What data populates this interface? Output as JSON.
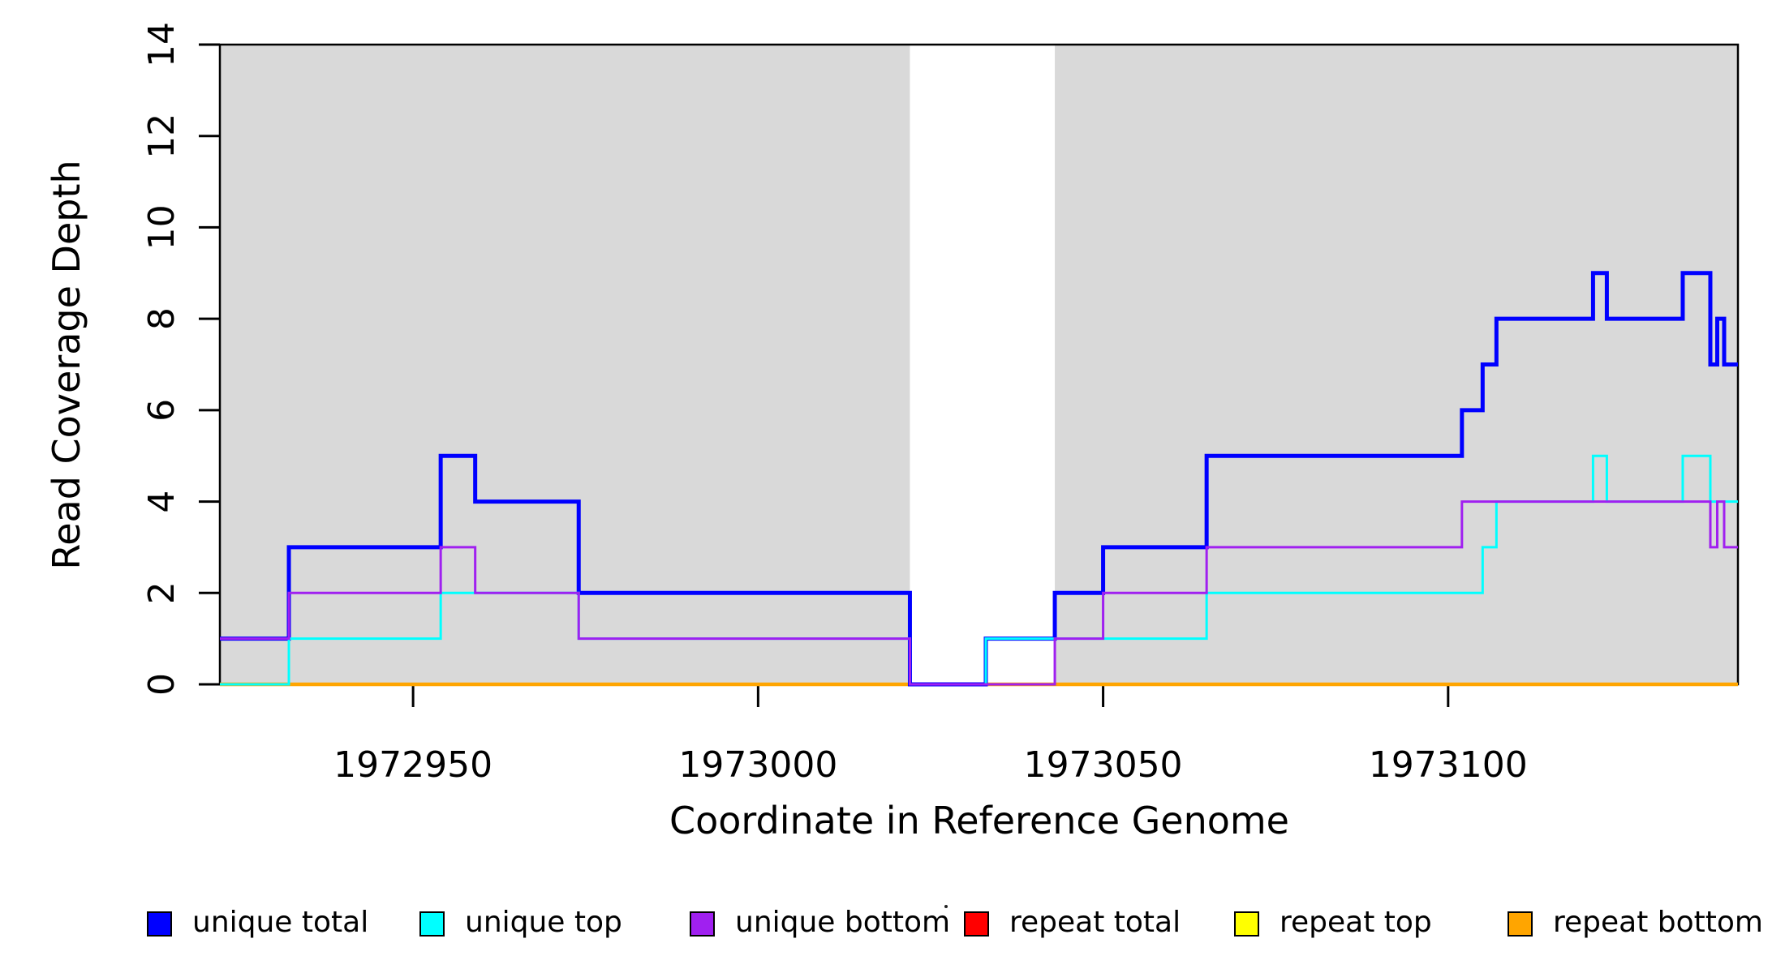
{
  "chart_data": {
    "type": "line",
    "subtype": "step-coverage",
    "title": "",
    "xlabel": "Coordinate in Reference Genome",
    "ylabel": "Read Coverage Depth",
    "x_range": [
      1972922,
      1973142
    ],
    "y_range": [
      0,
      14
    ],
    "x_ticks": [
      1972950,
      1973000,
      1973050,
      1973100
    ],
    "y_ticks": [
      0,
      2,
      4,
      6,
      8,
      10,
      12,
      14
    ],
    "grid": false,
    "background_color": "#ffffff",
    "shaded_regions": [
      {
        "name": "aligned-block-1",
        "x0": 1972922,
        "x1": 1973022,
        "color": "#d9d9d9"
      },
      {
        "name": "aligned-block-2",
        "x0": 1973043,
        "x1": 1973142,
        "color": "#d9d9d9"
      }
    ],
    "series": [
      {
        "name": "unique total",
        "color": "#0000ff",
        "line_width": 5,
        "z": 4,
        "steps": [
          [
            1972922,
            1
          ],
          [
            1972932,
            3
          ],
          [
            1972954,
            5
          ],
          [
            1972959,
            4
          ],
          [
            1972974,
            2
          ],
          [
            1973022,
            0
          ],
          [
            1973033,
            1
          ],
          [
            1973043,
            2
          ],
          [
            1973050,
            3
          ],
          [
            1973065,
            5
          ],
          [
            1973102,
            6
          ],
          [
            1973105,
            7
          ],
          [
            1973107,
            8
          ],
          [
            1973121,
            9
          ],
          [
            1973123,
            8
          ],
          [
            1973134,
            9
          ],
          [
            1973138,
            7
          ],
          [
            1973139,
            8
          ],
          [
            1973140,
            7
          ]
        ]
      },
      {
        "name": "unique top",
        "color": "#00ffff",
        "line_width": 3,
        "z": 5,
        "steps": [
          [
            1972922,
            0
          ],
          [
            1972932,
            1
          ],
          [
            1972954,
            2
          ],
          [
            1972974,
            1
          ],
          [
            1973022,
            0
          ],
          [
            1973033,
            1
          ],
          [
            1973065,
            2
          ],
          [
            1973105,
            3
          ],
          [
            1973107,
            4
          ],
          [
            1973121,
            5
          ],
          [
            1973123,
            4
          ],
          [
            1973134,
            5
          ],
          [
            1973138,
            4
          ]
        ]
      },
      {
        "name": "unique bottom",
        "color": "#a020f0",
        "line_width": 3,
        "z": 6,
        "steps": [
          [
            1972922,
            1
          ],
          [
            1972932,
            2
          ],
          [
            1972954,
            3
          ],
          [
            1972959,
            2
          ],
          [
            1972974,
            1
          ],
          [
            1973022,
            0
          ],
          [
            1973043,
            1
          ],
          [
            1973050,
            2
          ],
          [
            1973065,
            3
          ],
          [
            1973102,
            4
          ],
          [
            1973138,
            3
          ],
          [
            1973139,
            4
          ],
          [
            1973140,
            3
          ]
        ]
      },
      {
        "name": "repeat total",
        "color": "#ff0000",
        "line_width": 3,
        "z": 1,
        "steps": [
          [
            1972922,
            0
          ]
        ]
      },
      {
        "name": "repeat top",
        "color": "#ffff00",
        "line_width": 3,
        "z": 2,
        "steps": [
          [
            1972922,
            0
          ]
        ]
      },
      {
        "name": "repeat bottom",
        "color": "#ffa500",
        "line_width": 4.5,
        "z": 3,
        "steps": [
          [
            1972922,
            0
          ]
        ]
      }
    ],
    "legend": {
      "position": "bottom",
      "items": [
        {
          "label": "unique total",
          "color": "#0000ff"
        },
        {
          "label": "unique top",
          "color": "#00ffff"
        },
        {
          "label": "unique bottom",
          "color": "#a020f0"
        },
        {
          "label": "repeat total",
          "color": "#ff0000"
        },
        {
          "label": "repeat top",
          "color": "#ffff00"
        },
        {
          "label": "repeat bottom",
          "color": "#ffa500"
        }
      ]
    },
    "axis_color": "#000000",
    "has_stray_mark": true
  }
}
